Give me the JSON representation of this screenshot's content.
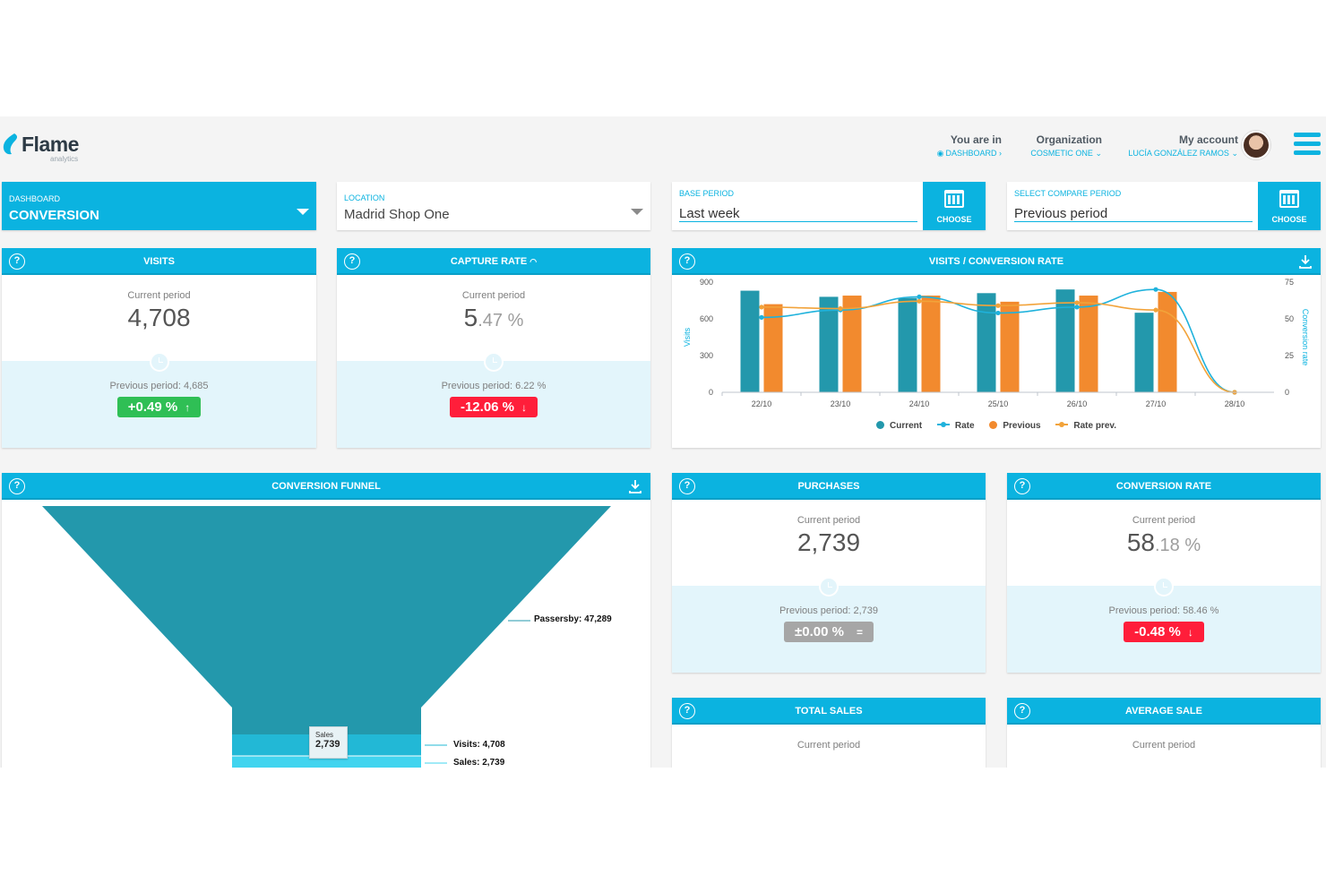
{
  "header": {
    "logo_text": "Flame",
    "logo_sub": "analytics",
    "you_are_in_label": "You are in",
    "you_are_in_link": "DASHBOARD",
    "organization_label": "Organization",
    "organization_link": "COSMETIC ONE",
    "account_label": "My account",
    "account_link": "LUCÍA GONZÁLEZ RAMOS"
  },
  "filters": {
    "dashboard_label": "DASHBOARD",
    "dashboard_value": "CONVERSION",
    "location_label": "LOCATION",
    "location_value": "Madrid Shop One",
    "base_period_label": "BASE PERIOD",
    "base_period_value": "Last week",
    "compare_period_label": "SELECT COMPARE PERIOD",
    "compare_period_value": "Previous period",
    "choose_label": "CHOOSE"
  },
  "colors": {
    "accent": "#0bb3e0",
    "current": "#2398ac",
    "previous": "#f28a2e",
    "positive": "#2fbf55",
    "negative": "#ff1e3a",
    "neutral": "#a6a6a6"
  },
  "cards": {
    "visits": {
      "title": "VISITS",
      "current_label": "Current period",
      "value": "4,708",
      "previous": "Previous period: 4,685",
      "delta": "+0.49 %",
      "delta_arrow": "↑"
    },
    "capture_rate": {
      "title": "CAPTURE RATE",
      "current_label": "Current period",
      "value_int": "5",
      "value_dec": ".47 %",
      "previous": "Previous period: 6.22 %",
      "delta": "-12.06 %",
      "delta_arrow": "↓"
    },
    "purchases": {
      "title": "PURCHASES",
      "current_label": "Current period",
      "value": "2,739",
      "previous": "Previous period: 2,739",
      "delta": "±0.00 %",
      "delta_arrow": "="
    },
    "conversion_rate": {
      "title": "CONVERSION RATE",
      "current_label": "Current period",
      "value_int": "58",
      "value_dec": ".18 %",
      "previous": "Previous period: 58.46 %",
      "delta": "-0.48 %",
      "delta_arrow": "↓"
    },
    "total_sales": {
      "title": "TOTAL SALES",
      "current_label": "Current period"
    },
    "average_sale": {
      "title": "AVERAGE SALE",
      "current_label": "Current period"
    },
    "visits_conversion": {
      "title": "VISITS / CONVERSION RATE"
    },
    "funnel": {
      "title": "CONVERSION FUNNEL",
      "sales_tag_label": "Sales",
      "sales_tag_value": "2,739",
      "labels": [
        "Passersby: 47,289",
        "Visits: 4,708",
        "Sales: 2,739"
      ]
    }
  },
  "chart_data": {
    "type": "bar",
    "categories": [
      "22/10",
      "23/10",
      "24/10",
      "25/10",
      "26/10",
      "27/10",
      "28/10"
    ],
    "ylabel": "Visits",
    "y2label": "Conversion rate",
    "ylim": [
      0,
      900
    ],
    "y2lim": [
      0,
      75
    ],
    "yticks": [
      "900",
      "600",
      "300",
      "0"
    ],
    "y2ticks": [
      "75",
      "50",
      "25",
      "0"
    ],
    "series": [
      {
        "name": "Current",
        "kind": "bar",
        "axis": "left",
        "values": [
          830,
          780,
          770,
          810,
          840,
          650,
          0
        ]
      },
      {
        "name": "Previous",
        "kind": "bar",
        "axis": "left",
        "values": [
          720,
          790,
          790,
          740,
          790,
          820,
          0
        ]
      },
      {
        "name": "Rate",
        "kind": "line",
        "axis": "right",
        "values": [
          51,
          56,
          65,
          54,
          58,
          70,
          0
        ]
      },
      {
        "name": "Rate prev.",
        "kind": "line",
        "axis": "right",
        "values": [
          58,
          57,
          62,
          59,
          61,
          56,
          0
        ]
      }
    ],
    "legend": [
      "Current",
      "Rate",
      "Previous",
      "Rate prev."
    ],
    "legend_position": "bottom"
  },
  "funnel_data": {
    "stages": [
      "Passersby",
      "Visits",
      "Sales"
    ],
    "values": [
      47289,
      4708,
      2739
    ]
  }
}
